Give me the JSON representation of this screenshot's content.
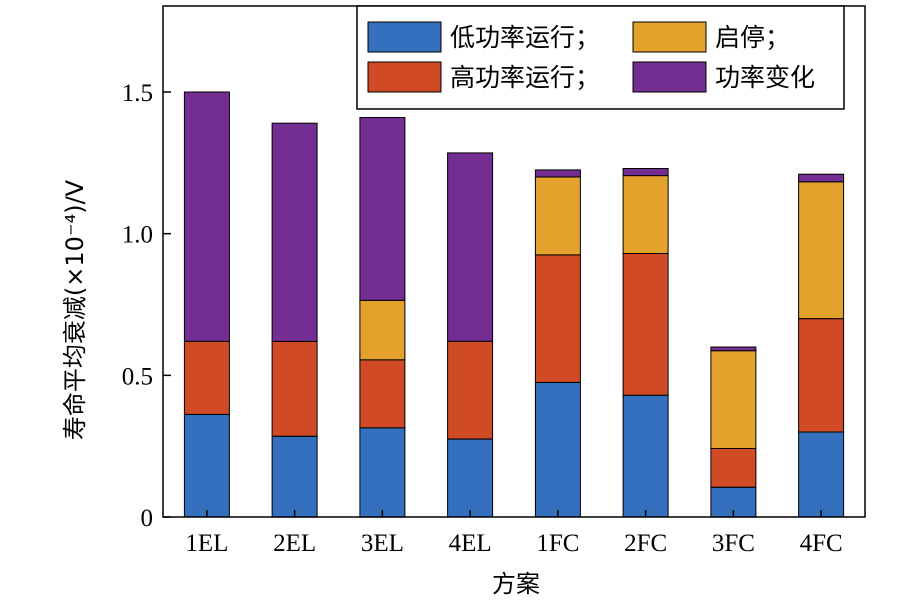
{
  "chart_data": {
    "type": "bar",
    "stacked": true,
    "categories": [
      "1EL",
      "2EL",
      "3EL",
      "4EL",
      "1FC",
      "2FC",
      "3FC",
      "4FC"
    ],
    "series": [
      {
        "name": "低功率运行；",
        "color": "#3470bd",
        "values": [
          0.362,
          0.285,
          0.315,
          0.275,
          0.475,
          0.43,
          0.105,
          0.3
        ]
      },
      {
        "name": "高功率运行；",
        "color": "#d04a26",
        "values": [
          0.258,
          0.335,
          0.24,
          0.345,
          0.45,
          0.5,
          0.137,
          0.4
        ]
      },
      {
        "name": "启停；",
        "color": "#e3a22c",
        "values": [
          0,
          0,
          0.21,
          0,
          0.275,
          0.275,
          0.345,
          0.483
        ]
      },
      {
        "name": "功率变化",
        "color": "#742d92",
        "values": [
          0.88,
          0.77,
          0.645,
          0.665,
          0.025,
          0.025,
          0.013,
          0.027
        ]
      }
    ],
    "ylabel": "寿命平均衰减(×10⁻⁴)/V",
    "xlabel": "方案",
    "ylim": [
      0,
      1.5
    ],
    "yticks": [
      0,
      0.5,
      1.0,
      1.5
    ],
    "ytick_labels": [
      "0",
      "0.5",
      "1.0",
      "1.5"
    ],
    "grid": false,
    "legend_position": "top",
    "legend_order": [
      "低功率运行；",
      "启停；",
      "高功率运行；",
      "功率变化"
    ]
  }
}
